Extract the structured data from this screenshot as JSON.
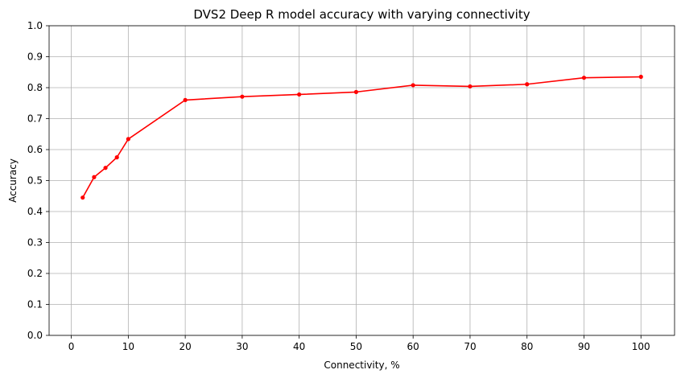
{
  "chart_data": {
    "type": "line",
    "title": "DVS2 Deep R model accuracy with varying connectivity",
    "xlabel": "Connectivity, %",
    "ylabel": "Accuracy",
    "xlim": [
      -3.9,
      105.9
    ],
    "ylim": [
      0.0,
      1.0
    ],
    "xticks": [
      0,
      10,
      20,
      30,
      40,
      50,
      60,
      70,
      80,
      90,
      100
    ],
    "yticks": [
      0.0,
      0.1,
      0.2,
      0.3,
      0.4,
      0.5,
      0.6,
      0.7,
      0.8,
      0.9,
      1.0
    ],
    "grid": true,
    "series": [
      {
        "color": "#ff0000",
        "marker": "point",
        "x": [
          2,
          4,
          6,
          8,
          10,
          20,
          30,
          40,
          50,
          60,
          70,
          80,
          90,
          100
        ],
        "y": [
          0.445,
          0.511,
          0.541,
          0.575,
          0.634,
          0.76,
          0.771,
          0.778,
          0.786,
          0.808,
          0.804,
          0.811,
          0.832,
          0.835
        ]
      }
    ]
  }
}
